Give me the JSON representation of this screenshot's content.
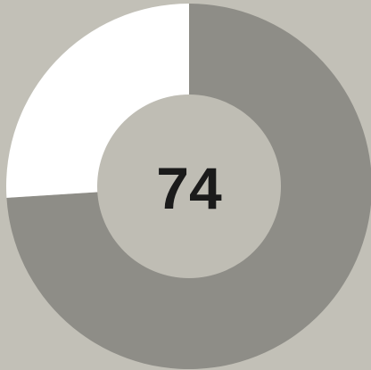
{
  "chart_data": {
    "type": "donut",
    "values": [
      74,
      26
    ],
    "colors": [
      "#8e8d87",
      "#ffffff"
    ],
    "center_color": "#bfbdb4"
  }
}
